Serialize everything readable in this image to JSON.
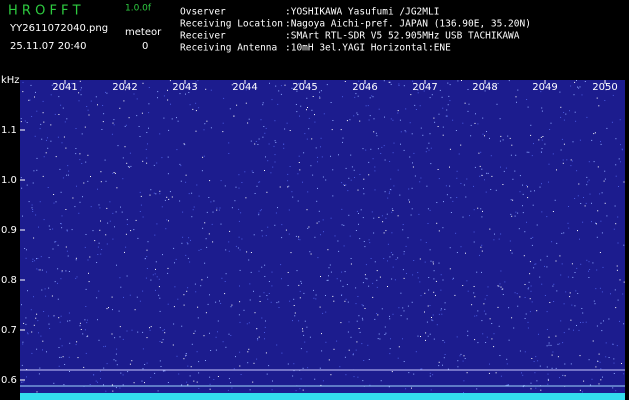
{
  "header": {
    "app_name": "H R O F F T",
    "version": "1.0.0f",
    "file_name": "YY2611072040.png",
    "timestamp": "25.11.07 20:40",
    "meteor_label": "meteor",
    "meteor_count": "0"
  },
  "info": [
    {
      "label": "Ovserver",
      "value": ":YOSHIKAWA Yasufumi /JG2MLI"
    },
    {
      "label": "Receiving Location",
      "value": ":Nagoya Aichi-pref. JAPAN (136.90E, 35.20N)"
    },
    {
      "label": "Receiver",
      "value": ":SMArt RTL-SDR V5 52.905MHz USB TACHIKAWA"
    },
    {
      "label": "Receiving Antenna",
      "value": ":10mH 3el.YAGI Horizontal:ENE"
    }
  ],
  "spectrogram": {
    "y_unit": "kHz",
    "ylim": [
      0.56,
      1.2
    ],
    "yticks": [
      1.1,
      {
        "value": 1,
        "label": "1.0"
      },
      0.9,
      0.8,
      0.7,
      0.6
    ],
    "xlim": [
      2040.25,
      2050.333
    ],
    "xticks": [
      2041,
      2042,
      2043,
      2044,
      2045,
      2046,
      2047,
      2048,
      2049,
      2050
    ]
  }
}
